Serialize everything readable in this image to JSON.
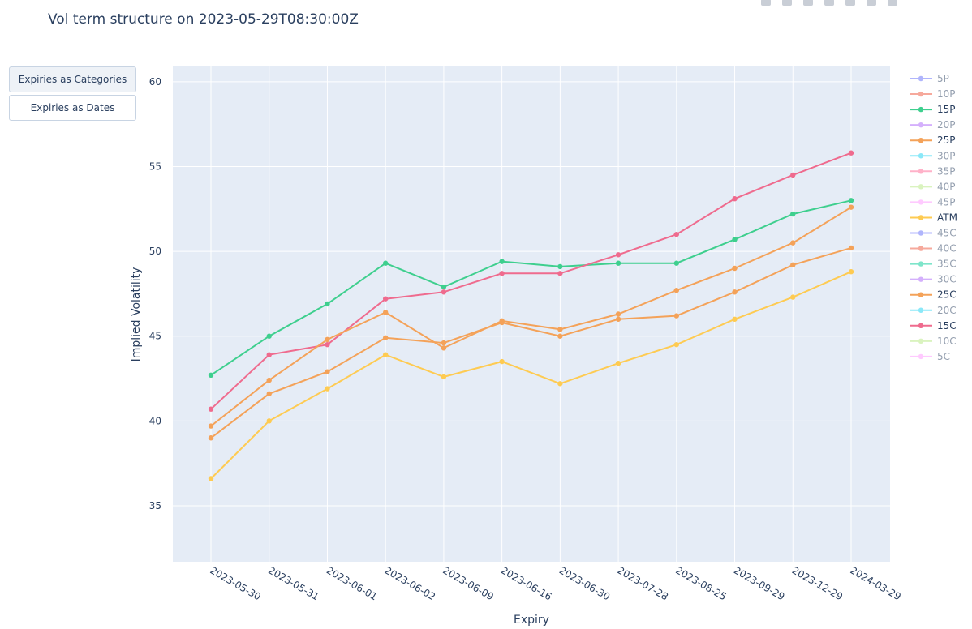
{
  "title": "Vol term structure on 2023-05-29T08:30:00Z",
  "buttons": [
    {
      "label": "Expiries as Categories"
    },
    {
      "label": "Expiries as Dates"
    }
  ],
  "chart_data": {
    "type": "line",
    "xlabel": "Expiry",
    "ylabel": "Implied Volatility",
    "ylim": [
      31.7,
      60.9
    ],
    "yticks": [
      35,
      40,
      45,
      50,
      55,
      60
    ],
    "grid": true,
    "legend_position": "right",
    "categories": [
      "2023-05-30",
      "2023-05-31",
      "2023-06-01",
      "2023-06-02",
      "2023-06-09",
      "2023-06-16",
      "2023-06-30",
      "2023-07-28",
      "2023-08-25",
      "2023-09-29",
      "2023-12-29",
      "2024-03-29"
    ],
    "legend": [
      {
        "name": "5P",
        "color": "#636efa",
        "visible": false
      },
      {
        "name": "10P",
        "color": "#ef553b",
        "visible": false
      },
      {
        "name": "15P",
        "color": "#3ecf8e",
        "visible": true
      },
      {
        "name": "20P",
        "color": "#ab63fa",
        "visible": false
      },
      {
        "name": "25P",
        "color": "#f4a259",
        "visible": true
      },
      {
        "name": "30P",
        "color": "#19d3f3",
        "visible": false
      },
      {
        "name": "35P",
        "color": "#ff6692",
        "visible": false
      },
      {
        "name": "40P",
        "color": "#b6e880",
        "visible": false
      },
      {
        "name": "45P",
        "color": "#ff97ff",
        "visible": false
      },
      {
        "name": "ATM",
        "color": "#fecb52",
        "visible": true
      },
      {
        "name": "45C",
        "color": "#636efa",
        "visible": false
      },
      {
        "name": "40C",
        "color": "#ef553b",
        "visible": false
      },
      {
        "name": "35C",
        "color": "#00cc96",
        "visible": false
      },
      {
        "name": "30C",
        "color": "#ab63fa",
        "visible": false
      },
      {
        "name": "25C",
        "color": "#f4a259",
        "visible": true
      },
      {
        "name": "20C",
        "color": "#19d3f3",
        "visible": false
      },
      {
        "name": "15C",
        "color": "#ef6b8e",
        "visible": true
      },
      {
        "name": "10C",
        "color": "#b6e880",
        "visible": false
      },
      {
        "name": "5C",
        "color": "#ff97ff",
        "visible": false
      }
    ],
    "series": [
      {
        "name": "15P",
        "color": "#3ecf8e",
        "values": [
          42.7,
          45.0,
          46.9,
          49.3,
          47.9,
          49.4,
          49.1,
          49.3,
          49.3,
          50.7,
          52.2,
          53.0
        ]
      },
      {
        "name": "15C",
        "color": "#ef6b8e",
        "values": [
          40.7,
          43.9,
          44.5,
          47.2,
          47.6,
          48.7,
          48.7,
          49.8,
          51.0,
          53.1,
          54.5,
          55.8
        ]
      },
      {
        "name": "25P",
        "color": "#f4a259",
        "values": [
          39.7,
          42.4,
          44.8,
          46.4,
          44.3,
          45.9,
          45.4,
          46.3,
          47.7,
          49.0,
          50.5,
          52.6
        ]
      },
      {
        "name": "25C",
        "color": "#f4a259",
        "values": [
          39.0,
          41.6,
          42.9,
          44.9,
          44.6,
          45.8,
          45.0,
          46.0,
          46.2,
          47.6,
          49.2,
          50.2
        ]
      },
      {
        "name": "ATM",
        "color": "#fecb52",
        "values": [
          36.6,
          40.0,
          41.9,
          43.9,
          42.6,
          43.5,
          42.2,
          43.4,
          44.5,
          46.0,
          47.3,
          48.8
        ]
      }
    ]
  }
}
